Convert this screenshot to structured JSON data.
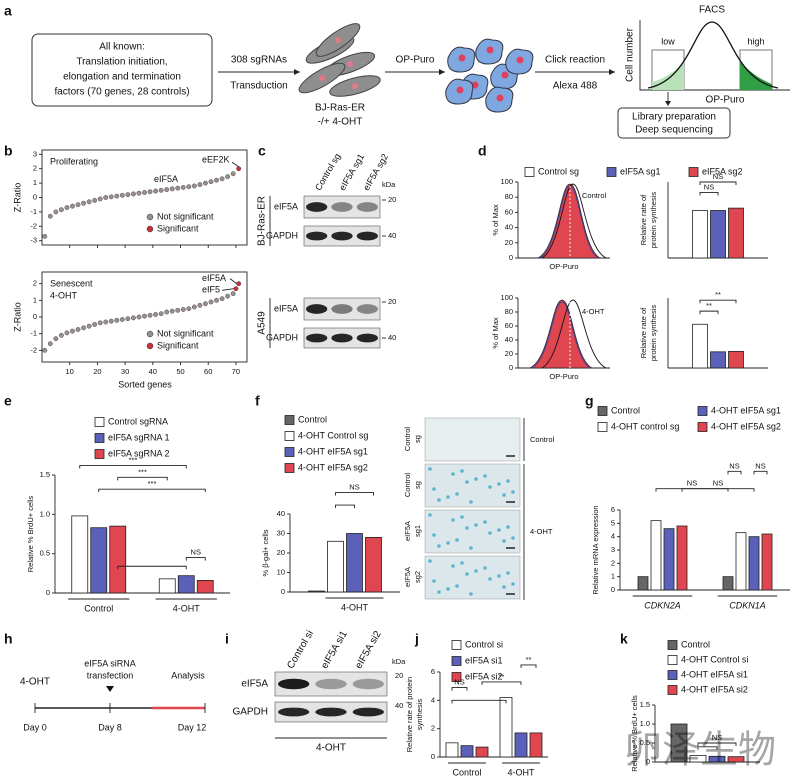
{
  "a": {
    "letter": "a",
    "box": [
      "All known:",
      "Translation initiation,",
      "elongation and termination",
      "factors (70 genes, 28 controls)"
    ],
    "arrow1": [
      "308 sgRNAs",
      "Transduction"
    ],
    "cells1": [
      "BJ-Ras-ER",
      "-/+ 4-OHT"
    ],
    "arrow2": "OP-Puro",
    "arrow3": [
      "Click reaction",
      "Alexa 488"
    ],
    "facs": {
      "title": "FACS",
      "low": "low",
      "high": "high",
      "ylabel": "Cell number",
      "xlabel": "OP-Puro",
      "box": [
        "Library preparation",
        "Deep sequencing"
      ]
    }
  },
  "b": {
    "letter": "b",
    "xlabel": "Sorted genes",
    "xlim": [
      0,
      74
    ],
    "xticks": [
      10,
      20,
      30,
      40,
      50,
      60,
      70
    ],
    "plots": [
      {
        "label": [
          "Proliferating"
        ],
        "ylabel": "Z-Ratio",
        "ylim": [
          -3.3,
          3.3
        ],
        "yticks": [
          -3,
          -2,
          -1,
          0,
          1,
          2,
          3
        ],
        "annotations": [
          "eEF2K",
          "eIF5A"
        ],
        "series": [
          {
            "name": "Not significant",
            "color": "#9a8f8f",
            "x": [
              1,
              3,
              5,
              7,
              9,
              11,
              13,
              15,
              17,
              19,
              21,
              23,
              25,
              27,
              29,
              31,
              33,
              35,
              37,
              39,
              41,
              43,
              45,
              47,
              49,
              51,
              53,
              55,
              57,
              59,
              61,
              63,
              65,
              67,
              69
            ],
            "values": [
              -2.7,
              -1.3,
              -1.0,
              -0.85,
              -0.7,
              -0.6,
              -0.5,
              -0.4,
              -0.3,
              -0.2,
              -0.1,
              0.0,
              0.05,
              0.1,
              0.15,
              0.2,
              0.25,
              0.3,
              0.35,
              0.4,
              0.45,
              0.5,
              0.55,
              0.6,
              0.65,
              0.7,
              0.75,
              0.8,
              0.9,
              1.0,
              1.1,
              1.2,
              1.3,
              1.45,
              1.65
            ]
          },
          {
            "name": "Significant",
            "color": "#c9303a",
            "x": [
              71
            ],
            "values": [
              2.0
            ]
          }
        ]
      },
      {
        "label": [
          "Senescent",
          "4-OHT"
        ],
        "ylabel": "Z-Ratio",
        "ylim": [
          -2.7,
          2.7
        ],
        "yticks": [
          -2,
          -1,
          0,
          1,
          2
        ],
        "annotations": [
          "eIF5A",
          "eIF5"
        ],
        "series": [
          {
            "name": "Not significant",
            "color": "#9a8f8f",
            "x": [
              1,
              3,
              5,
              7,
              9,
              11,
              13,
              15,
              17,
              19,
              21,
              23,
              25,
              27,
              29,
              31,
              33,
              35,
              37,
              39,
              41,
              43,
              45,
              47,
              49,
              51,
              53,
              55,
              57,
              59,
              61,
              63,
              65,
              67,
              69
            ],
            "values": [
              -2.0,
              -1.6,
              -1.3,
              -1.1,
              -0.95,
              -0.85,
              -0.75,
              -0.65,
              -0.55,
              -0.45,
              -0.35,
              -0.3,
              -0.25,
              -0.2,
              -0.15,
              -0.1,
              -0.05,
              0.0,
              0.05,
              0.1,
              0.15,
              0.2,
              0.3,
              0.35,
              0.4,
              0.45,
              0.5,
              0.6,
              0.7,
              0.8,
              0.9,
              1.0,
              1.1,
              1.25,
              1.4
            ]
          },
          {
            "name": "Significant",
            "color": "#c9303a",
            "x": [
              70,
              71
            ],
            "values": [
              1.7,
              2.0
            ]
          }
        ]
      }
    ]
  },
  "c": {
    "letter": "c",
    "lanes": [
      "Control sg",
      "eIF5A sg1",
      "eIF5A sg2"
    ],
    "kda": "kDa",
    "cells": [
      {
        "name": "BJ-Ras-ER",
        "rows": [
          "eIF5A",
          "GAPDH"
        ],
        "markers": [
          "20",
          "40"
        ]
      },
      {
        "name": "A549",
        "rows": [
          "eIF5A",
          "GAPDH"
        ],
        "markers": [
          "20",
          "40"
        ]
      }
    ]
  },
  "d": {
    "letter": "d",
    "legend": [
      {
        "name": "Control sg",
        "color": "#ffffff"
      },
      {
        "name": "eIF5A sg1",
        "color": "#5b60b8"
      },
      {
        "name": "eIF5A sg2",
        "color": "#e0464f"
      }
    ],
    "histograms": [
      {
        "label": "Control",
        "ylabel": "% of Max",
        "xlabel": "OP-Puro",
        "ylim": [
          0,
          100
        ],
        "yticks": [
          0,
          20,
          40,
          60,
          80,
          100
        ]
      },
      {
        "label": "4-OHT",
        "ylabel": "% of Max",
        "xlabel": "OP-Puro",
        "ylim": [
          0,
          100
        ],
        "yticks": [
          0,
          20,
          40,
          60,
          80,
          100
        ]
      }
    ],
    "bars": [
      {
        "ylabel": [
          "Relative rate of",
          "protein synthesis"
        ],
        "ylim": [
          0,
          1.6
        ],
        "values": [
          1.0,
          1.0,
          1.05
        ],
        "brackets": [
          "NS",
          "NS"
        ]
      },
      {
        "ylabel": [
          "Relative rate of",
          "protein synthesis"
        ],
        "ylim": [
          0,
          1.6
        ],
        "values": [
          1.0,
          0.37,
          0.38
        ],
        "brackets": [
          "**",
          "**"
        ]
      }
    ]
  },
  "e": {
    "letter": "e",
    "ylabel": [
      "Relative % BrdU+ cells"
    ],
    "ylim": [
      0,
      1.5
    ],
    "yticks": [
      0,
      {
        "value": 0.5,
        "label": "0.5"
      },
      {
        "value": 1,
        "label": "1.0"
      },
      {
        "value": 1.5,
        "label": "1.5"
      }
    ],
    "categories": [
      "Control",
      "4-OHT"
    ],
    "series": [
      {
        "name": "Control sgRNA",
        "color": "#ffffff",
        "values": [
          0.98,
          0.18
        ]
      },
      {
        "name": "eIF5A sgRNA 1",
        "color": "#5b60b8",
        "values": [
          0.83,
          0.22
        ]
      },
      {
        "name": "eIF5A sgRNA 2",
        "color": "#e0464f",
        "values": [
          0.85,
          0.16
        ]
      }
    ],
    "brackets": [
      "***",
      "***",
      "***",
      "NS"
    ]
  },
  "f": {
    "letter": "f",
    "ylabel": [
      "% β-gal+ cells"
    ],
    "ylim": [
      0,
      40
    ],
    "yticks": [
      0,
      10,
      20,
      30,
      40
    ],
    "xnote": "4-OHT",
    "series": [
      {
        "name": "Control",
        "color": "#666666",
        "values": [
          0.5
        ]
      },
      {
        "name": "4-OHT Control sg",
        "color": "#ffffff",
        "values": [
          26
        ]
      },
      {
        "name": "4-OHT eIF5A sg1",
        "color": "#5b60b8",
        "values": [
          30
        ]
      },
      {
        "name": "4-OHT eIF5A sg2",
        "color": "#e0464f",
        "values": [
          28
        ]
      }
    ],
    "brackets": [
      "NS"
    ],
    "images": [
      [
        "Control",
        "sg"
      ],
      [
        "Control",
        "sg"
      ],
      [
        "eIF5A",
        "sg1"
      ],
      [
        "eIF5A",
        "sg2"
      ]
    ],
    "image_groups": [
      "Control",
      "4-OHT"
    ]
  },
  "g": {
    "letter": "g",
    "ylabel": [
      "Relative mRNA expression"
    ],
    "ylim": [
      0,
      6
    ],
    "yticks": [
      0,
      1,
      2,
      3,
      4,
      5,
      6
    ],
    "categories": [
      "CDKN2A",
      "CDKN1A"
    ],
    "series": [
      {
        "name": "Control",
        "color": "#666666",
        "values": [
          1.0,
          1.0
        ]
      },
      {
        "name": "4-OHT control sg",
        "color": "#ffffff",
        "values": [
          5.2,
          4.3
        ]
      },
      {
        "name": "4-OHT eIF5A sg1",
        "color": "#5b60b8",
        "values": [
          4.6,
          4.0
        ]
      },
      {
        "name": "4-OHT eIF5A sg2",
        "color": "#e0464f",
        "values": [
          4.8,
          4.2
        ]
      }
    ],
    "brackets": [
      "NS",
      "NS",
      "NS",
      "NS"
    ]
  },
  "h": {
    "letter": "h",
    "start": "4-OHT",
    "event": [
      "eIF5A siRNA",
      "transfection"
    ],
    "end": "Analysis",
    "days": [
      "Day 0",
      "Day 8",
      "Day 12"
    ]
  },
  "i": {
    "letter": "i",
    "lanes": [
      "Control si",
      "eIF5A si1",
      "eIF5A si2"
    ],
    "kda": "kDa",
    "rows": [
      "eIF5A",
      "GAPDH"
    ],
    "markers": [
      "20",
      "40"
    ],
    "treatment": "4-OHT"
  },
  "j": {
    "letter": "j",
    "ylabel": [
      "Relative rate of protein",
      "synthesis"
    ],
    "ylim": [
      0,
      6
    ],
    "yticks": [
      0,
      2,
      4,
      6
    ],
    "categories": [
      "Control",
      "4-OHT"
    ],
    "series": [
      {
        "name": "Control si",
        "color": "#ffffff",
        "values": [
          1.0,
          4.2
        ]
      },
      {
        "name": "eIF5A si1",
        "color": "#5b60b8",
        "values": [
          0.8,
          1.7
        ]
      },
      {
        "name": "eIF5A si2",
        "color": "#e0464f",
        "values": [
          0.7,
          1.7
        ]
      }
    ],
    "brackets": [
      "NS",
      "**",
      "**"
    ]
  },
  "k": {
    "letter": "k",
    "ylabel": [
      "Relative % BrdU+ cells"
    ],
    "ylim": [
      0,
      1.5
    ],
    "yticks": [
      0,
      {
        "value": 0.5,
        "label": "0.5"
      },
      {
        "value": 1,
        "label": "1.0"
      },
      {
        "value": 1.5,
        "label": "1.5"
      }
    ],
    "series": [
      {
        "name": "Control",
        "color": "#666666",
        "values": [
          1.0
        ]
      },
      {
        "name": "4-OHT Control si",
        "color": "#ffffff",
        "values": [
          0.17
        ]
      },
      {
        "name": "4-OHT eIF5A si1",
        "color": "#5b60b8",
        "values": [
          0.15
        ]
      },
      {
        "name": "4-OHT eIF5A si2",
        "color": "#e0464f",
        "values": [
          0.14
        ]
      }
    ],
    "brackets": [
      "NS"
    ]
  },
  "watermark": "卵泽生物"
}
